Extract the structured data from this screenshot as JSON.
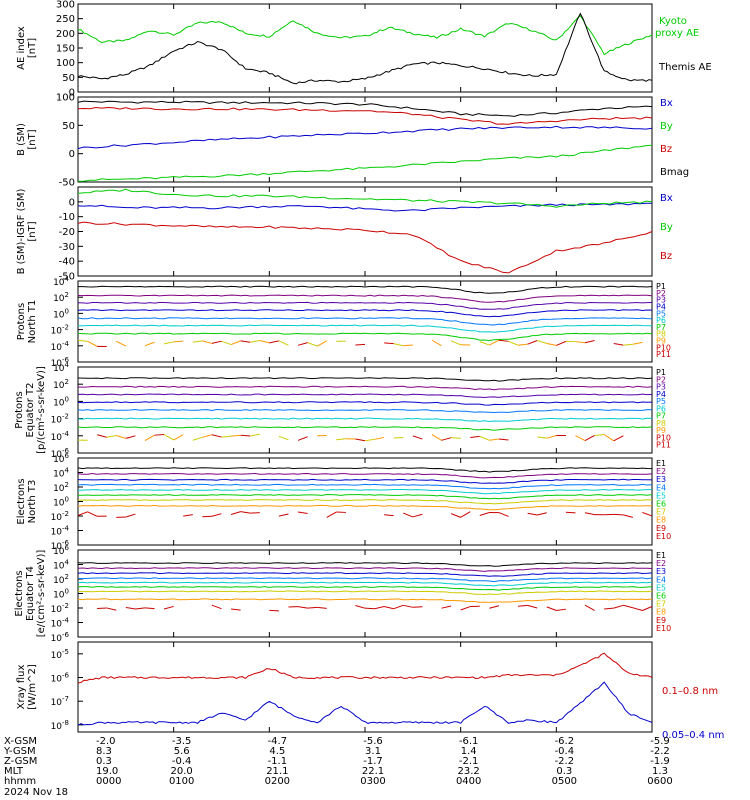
{
  "chart_data": [
    {
      "type": "line",
      "panel": "ae",
      "ylabel": "AE index [nT]",
      "ylim": [
        0,
        300
      ],
      "y_ticks": [
        "0",
        "50",
        "100",
        "150",
        "200",
        "250",
        "300"
      ],
      "x": [
        "00:00",
        "00:15",
        "00:30",
        "00:45",
        "01:00",
        "01:15",
        "01:30",
        "01:45",
        "02:00",
        "02:15",
        "02:30",
        "02:45",
        "03:00",
        "03:15",
        "03:30",
        "03:45",
        "04:00",
        "04:15",
        "04:30",
        "04:45",
        "05:00",
        "05:15",
        "05:30",
        "05:45",
        "06:00"
      ],
      "series": [
        {
          "name": "Kyoto proxy AE",
          "color": "#00cc00",
          "values": [
            215,
            170,
            175,
            210,
            195,
            235,
            240,
            200,
            190,
            245,
            200,
            185,
            190,
            220,
            200,
            185,
            215,
            190,
            235,
            210,
            175,
            260,
            130,
            165,
            195
          ]
        },
        {
          "name": "Themis AE",
          "color": "#000000",
          "values": [
            55,
            45,
            60,
            90,
            140,
            170,
            145,
            80,
            65,
            30,
            40,
            35,
            45,
            70,
            95,
            100,
            90,
            80,
            65,
            55,
            60,
            270,
            70,
            40,
            40
          ]
        }
      ],
      "legend": [
        "Kyoto",
        "proxy AE",
        "Themis AE"
      ]
    },
    {
      "type": "line",
      "panel": "bsm",
      "ylabel": "B (SM) [nT]",
      "ylim": [
        -50,
        100
      ],
      "y_ticks": [
        "-50",
        "0",
        "50",
        "100"
      ],
      "x": [
        "00:00",
        "00:30",
        "01:00",
        "01:30",
        "02:00",
        "02:30",
        "03:00",
        "03:30",
        "04:00",
        "04:30",
        "05:00",
        "05:30",
        "06:00"
      ],
      "series": [
        {
          "name": "Bx",
          "color": "#000000",
          "values": [
            92,
            91,
            91,
            90,
            90,
            89,
            87,
            80,
            70,
            67,
            72,
            80,
            83
          ]
        },
        {
          "name": "By",
          "color": "#00cc00",
          "values": [
            -47,
            -45,
            -42,
            -39,
            -35,
            -30,
            -26,
            -20,
            -14,
            -8,
            -5,
            5,
            15
          ]
        },
        {
          "name": "Bz",
          "color": "#cc0000",
          "values": [
            80,
            80,
            79,
            79,
            78,
            77,
            76,
            70,
            60,
            52,
            58,
            62,
            63
          ]
        },
        {
          "name": "Bmag",
          "color": "#0000cc",
          "values": [
            10,
            15,
            20,
            25,
            29,
            33,
            36,
            40,
            44,
            46,
            47,
            46,
            45
          ]
        }
      ],
      "legend": [
        "Bx",
        "By",
        "Bz",
        "Bmag"
      ]
    },
    {
      "type": "line",
      "panel": "digrf",
      "ylabel": "B (SM)-IGRF (SM) [nT]",
      "ylim": [
        -50,
        10
      ],
      "y_ticks": [
        "-50",
        "-40",
        "-30",
        "-20",
        "-10",
        "0"
      ],
      "x": [
        "00:00",
        "00:30",
        "01:00",
        "01:30",
        "02:00",
        "02:30",
        "03:00",
        "03:30",
        "04:00",
        "04:30",
        "05:00",
        "05:30",
        "06:00"
      ],
      "series": [
        {
          "name": "Bx",
          "color": "#0000cc",
          "values": [
            -2,
            -4,
            -4,
            -4,
            -3,
            -3,
            -5,
            -6,
            -4,
            -3,
            -2,
            -2,
            -1
          ]
        },
        {
          "name": "By",
          "color": "#00cc00",
          "values": [
            6,
            8,
            5,
            4,
            4,
            3,
            2,
            1,
            0,
            -1,
            -3,
            -1,
            0
          ]
        },
        {
          "name": "Bz",
          "color": "#cc0000",
          "values": [
            -14,
            -15,
            -16,
            -17,
            -17,
            -18,
            -19,
            -22,
            -40,
            -48,
            -33,
            -28,
            -20
          ]
        }
      ],
      "legend": [
        "Bx",
        "By",
        "Bz"
      ]
    },
    {
      "type": "line",
      "panel": "pnt1",
      "ylabel": "Protons North T1",
      "log": true,
      "ylim_exp": [
        -6,
        4
      ],
      "y_tick_exps": [
        -6,
        -4,
        -2,
        0,
        2,
        4
      ],
      "legend": [
        "P1",
        "P2",
        "P3",
        "P4",
        "P5",
        "P6",
        "P7",
        "P8",
        "P9",
        "P10",
        "P11"
      ],
      "colors": [
        "#000000",
        "#800080",
        "#5500aa",
        "#0000cc",
        "#0077ff",
        "#00cccc",
        "#00cc00",
        "#cccc00",
        "#ff9900",
        "#cc0000",
        "#cc0000"
      ],
      "levels": [
        3.3,
        2.2,
        1.3,
        0.4,
        -0.6,
        -1.5,
        -2.5
      ],
      "dip_exp": 0.8
    },
    {
      "type": "line",
      "panel": "pet2",
      "ylabel": "Protons Equator T2 [p/(cm²-s-sr-keV)]",
      "log": true,
      "ylim_exp": [
        -6,
        4
      ],
      "y_tick_exps": [
        -6,
        -4,
        -2,
        0,
        2,
        4
      ],
      "legend": [
        "P1",
        "P2",
        "P3",
        "P4",
        "P5",
        "P6",
        "P7",
        "P8",
        "P9",
        "P10",
        "P11"
      ],
      "colors": [
        "#000000",
        "#800080",
        "#5500aa",
        "#0000cc",
        "#0077ff",
        "#00cccc",
        "#00cc00",
        "#cccc00",
        "#ff9900",
        "#cc0000",
        "#cc0000"
      ],
      "levels": [
        2.7,
        1.7,
        0.8,
        -0.1,
        -1.0,
        -2.0,
        -3.0
      ],
      "dip_exp": 0.3
    },
    {
      "type": "line",
      "panel": "ent3",
      "ylabel": "Electrons North T3",
      "log": true,
      "ylim_exp": [
        -6,
        6
      ],
      "y_tick_exps": [
        -6,
        -4,
        -2,
        0,
        2,
        4,
        6
      ],
      "legend": [
        "E1",
        "E2",
        "E3",
        "E4",
        "E5",
        "E6",
        "E7",
        "E8",
        "E9",
        "E10"
      ],
      "colors": [
        "#000000",
        "#800080",
        "#0000cc",
        "#0077ff",
        "#00cccc",
        "#00cc00",
        "#cccc00",
        "#ff9900",
        "#cc0000",
        "#cc0000"
      ],
      "levels": [
        4.6,
        3.8,
        3.0,
        2.3,
        1.6,
        0.9,
        0.2,
        -0.6
      ],
      "dip_exp": 0.5
    },
    {
      "type": "line",
      "panel": "eet4",
      "ylabel": "Electrons Equator T4 [e/(cm²-s-sr-keV)]",
      "log": true,
      "ylim_exp": [
        -6,
        6
      ],
      "y_tick_exps": [
        -6,
        -4,
        -2,
        0,
        2,
        4,
        6
      ],
      "legend": [
        "E1",
        "E2",
        "E3",
        "E4",
        "E5",
        "E6",
        "E7",
        "E8",
        "E9",
        "E10"
      ],
      "colors": [
        "#000000",
        "#800080",
        "#0000cc",
        "#0077ff",
        "#00cccc",
        "#00cc00",
        "#cccc00",
        "#ff9900",
        "#cc0000",
        "#cc0000"
      ],
      "levels": [
        4.2,
        3.5,
        2.8,
        2.1,
        1.5,
        0.9,
        0.3,
        -0.8
      ],
      "dip_exp": 0.4
    },
    {
      "type": "line",
      "panel": "xray",
      "ylabel": "Xray flux [W/m^2]",
      "log": true,
      "ylim_exp": [
        -8.3,
        -4.5
      ],
      "y_tick_exps": [
        -8,
        -7,
        -6,
        -5
      ],
      "x": [
        "00:00",
        "00:15",
        "00:30",
        "00:45",
        "01:00",
        "01:15",
        "01:30",
        "01:45",
        "02:00",
        "02:15",
        "02:30",
        "02:45",
        "03:00",
        "03:15",
        "03:30",
        "03:45",
        "04:00",
        "04:15",
        "04:30",
        "04:45",
        "05:00",
        "05:15",
        "05:30",
        "05:45",
        "06:00"
      ],
      "series": [
        {
          "name": "0.1–0.8 nm",
          "color": "#cc0000",
          "values": [
            -6.2,
            -6.0,
            -6.0,
            -6.0,
            -6.0,
            -6.0,
            -6.0,
            -6.0,
            -5.6,
            -6.0,
            -6.0,
            -6.0,
            -6.0,
            -6.0,
            -6.0,
            -6.0,
            -6.0,
            -6.0,
            -5.9,
            -5.9,
            -5.9,
            -5.5,
            -5.0,
            -5.8,
            -6.0
          ]
        },
        {
          "name": "0.05–0.4 nm",
          "color": "#0000cc",
          "values": [
            -8.0,
            -7.9,
            -7.9,
            -7.9,
            -7.9,
            -7.9,
            -7.5,
            -7.8,
            -7.0,
            -7.6,
            -7.9,
            -7.2,
            -7.9,
            -7.9,
            -7.9,
            -7.9,
            -7.9,
            -7.2,
            -7.9,
            -7.8,
            -7.9,
            -7.1,
            -6.2,
            -7.5,
            -7.9
          ]
        }
      ],
      "legend": [
        "0.1–0.8 nm",
        "0.05–0.4 nm"
      ]
    }
  ],
  "x_axis": {
    "row_labels": [
      "X-GSM",
      "Y-GSM",
      "Z-GSM",
      "MLT",
      "hhmm",
      "2024 Nov 18"
    ],
    "columns": [
      [
        "-2.0",
        "8.3",
        "0.3",
        "19.0",
        "0000"
      ],
      [
        "-3.5",
        "5.6",
        "-0.4",
        "20.0",
        "0100"
      ],
      [
        "-4.7",
        "4.5",
        "-1.1",
        "21.1",
        "0200"
      ],
      [
        "-5.6",
        "3.1",
        "-1.7",
        "22.1",
        "0300"
      ],
      [
        "-6.1",
        "1.4",
        "-2.1",
        "23.2",
        "0400"
      ],
      [
        "-6.2",
        "-0.4",
        "-2.2",
        "0.3",
        "0500"
      ],
      [
        "-5.9",
        "-2.2",
        "-1.9",
        "1.3",
        "0600"
      ]
    ]
  }
}
